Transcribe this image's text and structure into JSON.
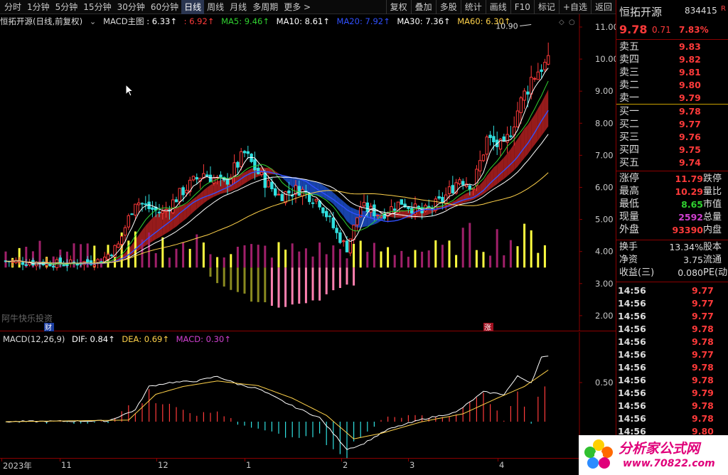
{
  "toolbar": {
    "periods": [
      "分时",
      "1分钟",
      "5分钟",
      "15分钟",
      "30分钟",
      "60分钟",
      "日线",
      "周线",
      "月线",
      "多周期",
      "更多 >"
    ],
    "active_period": "日线",
    "buttons": [
      "复权",
      "叠加",
      "多股",
      "统计",
      "画线",
      "F10",
      "标记",
      "+自选",
      "返回"
    ]
  },
  "main_legend": {
    "title": "恒拓开源(日线,前复权)",
    "indicator": "MACD主图",
    "v1": ": 6.33↑",
    "v2": ": 6.92↑",
    "ma5": "MA5: 9.46↑",
    "ma10": "MA10: 8.61↑",
    "ma20": "MA20: 7.92↑",
    "ma30": "MA30: 7.36↑",
    "ma60": "MA60: 6.30↑"
  },
  "main_axis": {
    "ticks": [
      "11.00",
      "10.00",
      "9.00",
      "8.00",
      "7.00",
      "6.00",
      "5.00",
      "4.00",
      "3.00",
      "2.00"
    ],
    "high_label": "10.90"
  },
  "main_annotations": {
    "watermark_text": "阿牛快乐投资",
    "cai_tag": "财",
    "zhang_tag": "涨"
  },
  "macd_legend": {
    "title": "MACD(12,26,9)",
    "dif": "DIF: 0.84↑",
    "dea": "DEA: 0.69↑",
    "macd": "MACD: 0.30↑"
  },
  "macd_axis": {
    "ticks": [
      "0.50"
    ]
  },
  "date_axis": [
    "2023年",
    "11",
    "12",
    "1",
    "2",
    "3",
    "4"
  ],
  "stock": {
    "name": "恒拓开源",
    "code": "834415",
    "flag": "R",
    "price": "9.78",
    "change": "0.71",
    "pct": "7.83%"
  },
  "order_book": {
    "sells": [
      {
        "label": "卖五",
        "price": "9.83"
      },
      {
        "label": "卖四",
        "price": "9.82"
      },
      {
        "label": "卖三",
        "price": "9.81"
      },
      {
        "label": "卖二",
        "price": "9.80"
      },
      {
        "label": "卖一",
        "price": "9.79"
      }
    ],
    "buys": [
      {
        "label": "买一",
        "price": "9.78"
      },
      {
        "label": "买二",
        "price": "9.77"
      },
      {
        "label": "买三",
        "price": "9.76"
      },
      {
        "label": "买四",
        "price": "9.75"
      },
      {
        "label": "买五",
        "price": "9.74"
      }
    ]
  },
  "stats": [
    {
      "label": "涨停",
      "value": "11.79",
      "color": "#ff3a3a",
      "right": "跌停"
    },
    {
      "label": "最高",
      "value": "10.29",
      "color": "#ff3a3a",
      "right": "量比"
    },
    {
      "label": "最低",
      "value": "8.65",
      "color": "#30d030",
      "right": "市值"
    },
    {
      "label": "现量",
      "value": "2592",
      "color": "#d040d0",
      "right": "总量"
    },
    {
      "label": "外盘",
      "value": "93390",
      "color": "#ff3a3a",
      "right": "内盘"
    }
  ],
  "basics": [
    {
      "label": "换手",
      "value": "13.34%",
      "right": "股本"
    },
    {
      "label": "净资",
      "value": "3.75",
      "right": "流通"
    },
    {
      "label": "收益(三)",
      "value": "0.080",
      "right": "PE(动"
    }
  ],
  "ticks": [
    {
      "time": "14:56",
      "price": "9.77"
    },
    {
      "time": "14:56",
      "price": "9.77"
    },
    {
      "time": "14:56",
      "price": "9.77"
    },
    {
      "time": "14:56",
      "price": "9.78"
    },
    {
      "time": "14:56",
      "price": "9.78"
    },
    {
      "time": "14:56",
      "price": "9.77"
    },
    {
      "time": "14:56",
      "price": "9.78"
    },
    {
      "time": "14:56",
      "price": "9.78"
    },
    {
      "time": "14:56",
      "price": "9.79"
    },
    {
      "time": "14:56",
      "price": "9.78"
    },
    {
      "time": "14:56",
      "price": "9.78"
    },
    {
      "time": "14:56",
      "price": "9.80"
    }
  ],
  "watermark": {
    "title": "分析家公式网",
    "url": "www.70822.com"
  },
  "colors": {
    "up": "#ff3a3a",
    "down": "#30e0e0",
    "ma5": "#ffffff",
    "ma10": "#30d030",
    "ma20": "#3050ff",
    "ma30": "#ffffff",
    "ma60": "#ffd24a",
    "vol_up": "#ffff40",
    "vol_down": "#a0206a"
  }
}
